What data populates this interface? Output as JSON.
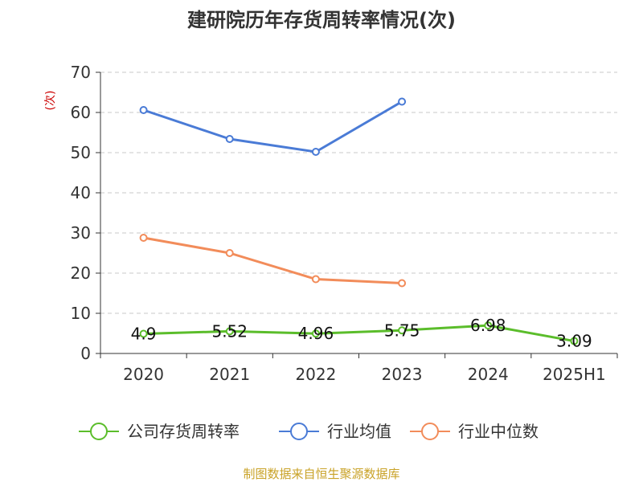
{
  "chart_data": {
    "type": "line",
    "title": "建研院历年存货周转率情况(次)",
    "unit": "(次)",
    "categories": [
      "2020",
      "2021",
      "2022",
      "2023",
      "2024",
      "2025H1"
    ],
    "ylim": [
      0,
      70
    ],
    "yticks": [
      "0",
      "10",
      "20",
      "30",
      "40",
      "50",
      "60",
      "70"
    ],
    "grid": true,
    "legend_position": "bottom",
    "series": [
      {
        "name": "公司存货周转率",
        "color": "#5bbd2b",
        "values": [
          4.9,
          5.52,
          4.96,
          5.75,
          6.98,
          3.09
        ],
        "labels": [
          "4.9",
          "5.52",
          "4.96",
          "5.75",
          "6.98",
          "3.09"
        ]
      },
      {
        "name": "行业均值",
        "color": "#4a7bd6",
        "values": [
          60.6,
          53.4,
          50.2,
          62.7,
          null,
          null
        ]
      },
      {
        "name": "行业中位数",
        "color": "#f28c5a",
        "values": [
          28.8,
          25.0,
          18.5,
          17.5,
          null,
          null
        ]
      }
    ]
  },
  "source": "制图数据来自恒生聚源数据库"
}
